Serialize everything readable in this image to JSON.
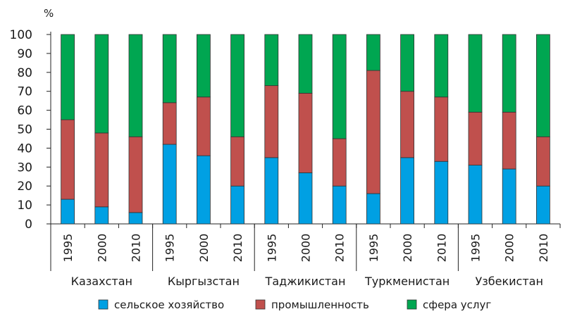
{
  "chart_data": {
    "type": "bar",
    "stacked": true,
    "unit_label": "%",
    "ylim": [
      0,
      100
    ],
    "yticks": [
      0,
      10,
      20,
      30,
      40,
      50,
      60,
      70,
      80,
      90,
      100
    ],
    "groups": [
      {
        "name": "Казахстан",
        "years": [
          "1995",
          "2000",
          "2010"
        ]
      },
      {
        "name": "Кыргызстан",
        "years": [
          "1995",
          "2000",
          "2010"
        ]
      },
      {
        "name": "Таджикистан",
        "years": [
          "1995",
          "2000",
          "2010"
        ]
      },
      {
        "name": "Туркменистан",
        "years": [
          "1995",
          "2000",
          "2010"
        ]
      },
      {
        "name": "Узбекистан",
        "years": [
          "1995",
          "2000",
          "2010"
        ]
      }
    ],
    "series": [
      {
        "name": "сельское хозяйство",
        "color": "#00a0e3",
        "values": [
          13,
          9,
          6,
          42,
          36,
          20,
          35,
          27,
          20,
          16,
          35,
          33,
          31,
          29,
          20
        ]
      },
      {
        "name": "промышленность",
        "color": "#c0504d",
        "values": [
          42,
          39,
          40,
          22,
          31,
          26,
          38,
          42,
          25,
          65,
          35,
          34,
          28,
          30,
          26
        ]
      },
      {
        "name": "сфера услуг",
        "color": "#00a651",
        "values": [
          45,
          52,
          54,
          36,
          33,
          54,
          27,
          31,
          55,
          19,
          30,
          33,
          41,
          41,
          54
        ]
      }
    ],
    "legend_position": "bottom",
    "grid": false
  }
}
